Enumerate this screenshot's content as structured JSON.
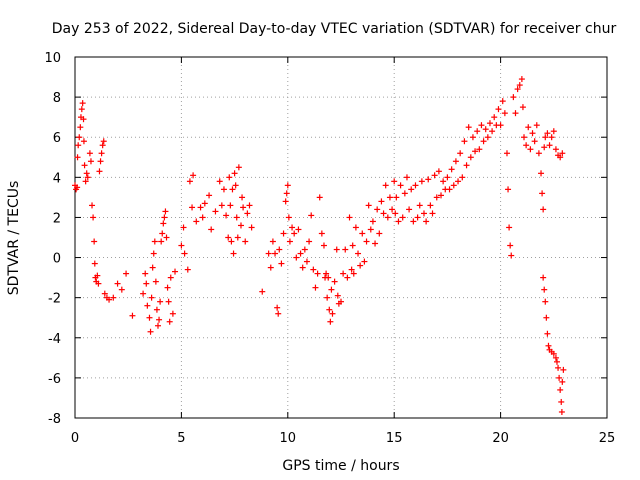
{
  "chart_data": {
    "type": "scatter",
    "title": "Day 253 of 2022, Sidereal Day-to-day VTEC variation (SDTVAR) for receiver chur",
    "xlabel": "GPS time / hours",
    "ylabel": "SDTVAR / TECUs",
    "xlim": [
      0,
      25
    ],
    "ylim": [
      -8,
      10
    ],
    "xticks": [
      "0",
      "5",
      "10",
      "15",
      "20",
      "25"
    ],
    "yticks": [
      "-8",
      "-6",
      "-4",
      "-2",
      "0",
      "2",
      "4",
      "6",
      "8",
      "10"
    ],
    "grid": true,
    "marker": "+",
    "color": "#ff0000",
    "series": [
      {
        "name": "SDTVAR",
        "points": [
          [
            0.0,
            3.6
          ],
          [
            0.05,
            3.4
          ],
          [
            0.1,
            3.5
          ],
          [
            0.12,
            5.0
          ],
          [
            0.15,
            5.6
          ],
          [
            0.2,
            6.0
          ],
          [
            0.25,
            6.5
          ],
          [
            0.28,
            7.0
          ],
          [
            0.32,
            7.4
          ],
          [
            0.36,
            7.7
          ],
          [
            0.4,
            6.9
          ],
          [
            0.42,
            5.8
          ],
          [
            0.45,
            4.6
          ],
          [
            0.5,
            3.8
          ],
          [
            0.55,
            4.2
          ],
          [
            0.6,
            4.0
          ],
          [
            0.7,
            5.2
          ],
          [
            0.75,
            4.8
          ],
          [
            0.8,
            2.6
          ],
          [
            0.85,
            2.0
          ],
          [
            0.9,
            0.8
          ],
          [
            0.93,
            -0.3
          ],
          [
            0.96,
            -1.0
          ],
          [
            1.0,
            -1.2
          ],
          [
            1.05,
            -0.9
          ],
          [
            1.1,
            -1.3
          ],
          [
            1.15,
            4.3
          ],
          [
            1.2,
            4.8
          ],
          [
            1.25,
            5.2
          ],
          [
            1.3,
            5.6
          ],
          [
            1.35,
            5.8
          ],
          [
            1.4,
            -1.8
          ],
          [
            1.5,
            -2.0
          ],
          [
            1.6,
            -2.1
          ],
          [
            1.8,
            -2.0
          ],
          [
            2.0,
            -1.3
          ],
          [
            2.2,
            -1.6
          ],
          [
            2.4,
            -0.8
          ],
          [
            2.7,
            -2.9
          ],
          [
            3.2,
            -1.8
          ],
          [
            3.3,
            -0.8
          ],
          [
            3.35,
            -1.3
          ],
          [
            3.4,
            -2.4
          ],
          [
            3.5,
            -3.0
          ],
          [
            3.55,
            -3.7
          ],
          [
            3.6,
            -2.0
          ],
          [
            3.65,
            -0.5
          ],
          [
            3.7,
            0.2
          ],
          [
            3.75,
            0.8
          ],
          [
            3.8,
            -1.2
          ],
          [
            3.85,
            -2.6
          ],
          [
            3.9,
            -3.4
          ],
          [
            3.95,
            -3.1
          ],
          [
            4.0,
            -2.2
          ],
          [
            4.05,
            0.8
          ],
          [
            4.1,
            1.2
          ],
          [
            4.15,
            1.7
          ],
          [
            4.2,
            2.0
          ],
          [
            4.25,
            2.3
          ],
          [
            4.3,
            1.0
          ],
          [
            4.35,
            -1.5
          ],
          [
            4.4,
            -2.2
          ],
          [
            4.45,
            -3.2
          ],
          [
            4.5,
            -1.0
          ],
          [
            4.6,
            -2.8
          ],
          [
            4.7,
            -0.7
          ],
          [
            5.0,
            0.6
          ],
          [
            5.1,
            1.5
          ],
          [
            5.15,
            0.2
          ],
          [
            5.3,
            -0.6
          ],
          [
            5.4,
            3.8
          ],
          [
            5.5,
            2.5
          ],
          [
            5.55,
            4.1
          ],
          [
            5.7,
            1.8
          ],
          [
            5.9,
            2.5
          ],
          [
            6.0,
            2.0
          ],
          [
            6.1,
            2.7
          ],
          [
            6.3,
            3.1
          ],
          [
            6.4,
            1.4
          ],
          [
            6.6,
            2.3
          ],
          [
            6.8,
            3.8
          ],
          [
            6.9,
            2.6
          ],
          [
            7.0,
            3.4
          ],
          [
            7.1,
            2.1
          ],
          [
            7.2,
            1.0
          ],
          [
            7.25,
            4.0
          ],
          [
            7.3,
            2.6
          ],
          [
            7.35,
            0.8
          ],
          [
            7.4,
            3.4
          ],
          [
            7.45,
            0.2
          ],
          [
            7.5,
            4.2
          ],
          [
            7.55,
            3.6
          ],
          [
            7.6,
            2.0
          ],
          [
            7.65,
            1.0
          ],
          [
            7.7,
            4.5
          ],
          [
            7.8,
            1.6
          ],
          [
            7.85,
            3.0
          ],
          [
            7.9,
            2.5
          ],
          [
            8.0,
            0.8
          ],
          [
            8.1,
            2.2
          ],
          [
            8.2,
            2.6
          ],
          [
            8.3,
            1.5
          ],
          [
            8.8,
            -1.7
          ],
          [
            9.1,
            0.2
          ],
          [
            9.2,
            -0.5
          ],
          [
            9.3,
            0.8
          ],
          [
            9.4,
            0.2
          ],
          [
            9.5,
            -2.5
          ],
          [
            9.55,
            -2.8
          ],
          [
            9.6,
            0.4
          ],
          [
            9.7,
            -0.3
          ],
          [
            9.8,
            1.2
          ],
          [
            9.9,
            2.8
          ],
          [
            9.95,
            3.2
          ],
          [
            10.0,
            3.6
          ],
          [
            10.05,
            2.0
          ],
          [
            10.1,
            0.8
          ],
          [
            10.2,
            1.5
          ],
          [
            10.3,
            1.2
          ],
          [
            10.4,
            0.0
          ],
          [
            10.5,
            1.4
          ],
          [
            10.6,
            0.2
          ],
          [
            10.7,
            -0.5
          ],
          [
            10.8,
            0.4
          ],
          [
            10.9,
            -0.2
          ],
          [
            11.0,
            0.8
          ],
          [
            11.1,
            2.1
          ],
          [
            11.2,
            -0.6
          ],
          [
            11.3,
            -1.5
          ],
          [
            11.4,
            -0.8
          ],
          [
            11.5,
            3.0
          ],
          [
            11.6,
            1.2
          ],
          [
            11.7,
            0.6
          ],
          [
            11.75,
            -1.0
          ],
          [
            11.8,
            -0.8
          ],
          [
            11.85,
            -2.0
          ],
          [
            11.9,
            -1.0
          ],
          [
            11.95,
            -2.6
          ],
          [
            12.0,
            -3.2
          ],
          [
            12.05,
            -1.6
          ],
          [
            12.1,
            -2.8
          ],
          [
            12.2,
            -1.2
          ],
          [
            12.3,
            0.4
          ],
          [
            12.35,
            -1.9
          ],
          [
            12.4,
            -2.3
          ],
          [
            12.5,
            -2.2
          ],
          [
            12.6,
            -0.8
          ],
          [
            12.7,
            0.4
          ],
          [
            12.8,
            -1.0
          ],
          [
            12.9,
            2.0
          ],
          [
            13.0,
            -0.6
          ],
          [
            13.05,
            0.6
          ],
          [
            13.1,
            -0.8
          ],
          [
            13.2,
            1.5
          ],
          [
            13.3,
            0.2
          ],
          [
            13.4,
            -0.4
          ],
          [
            13.5,
            1.2
          ],
          [
            13.6,
            -0.2
          ],
          [
            13.7,
            0.8
          ],
          [
            13.8,
            2.6
          ],
          [
            13.9,
            1.4
          ],
          [
            14.0,
            1.8
          ],
          [
            14.1,
            0.7
          ],
          [
            14.2,
            2.4
          ],
          [
            14.3,
            1.2
          ],
          [
            14.4,
            2.8
          ],
          [
            14.5,
            2.2
          ],
          [
            14.6,
            3.6
          ],
          [
            14.7,
            2.0
          ],
          [
            14.8,
            3.0
          ],
          [
            14.9,
            2.4
          ],
          [
            15.0,
            3.8
          ],
          [
            15.05,
            2.2
          ],
          [
            15.1,
            3.0
          ],
          [
            15.2,
            1.8
          ],
          [
            15.3,
            3.6
          ],
          [
            15.4,
            2.0
          ],
          [
            15.5,
            3.2
          ],
          [
            15.6,
            4.0
          ],
          [
            15.7,
            2.4
          ],
          [
            15.8,
            3.4
          ],
          [
            15.9,
            1.8
          ],
          [
            16.0,
            3.6
          ],
          [
            16.1,
            2.0
          ],
          [
            16.2,
            2.6
          ],
          [
            16.3,
            3.8
          ],
          [
            16.4,
            2.2
          ],
          [
            16.5,
            1.8
          ],
          [
            16.6,
            3.9
          ],
          [
            16.7,
            2.6
          ],
          [
            16.8,
            2.2
          ],
          [
            16.9,
            4.1
          ],
          [
            17.0,
            3.0
          ],
          [
            17.1,
            4.3
          ],
          [
            17.2,
            3.1
          ],
          [
            17.3,
            3.8
          ],
          [
            17.4,
            3.4
          ],
          [
            17.5,
            4.0
          ],
          [
            17.6,
            3.4
          ],
          [
            17.7,
            4.4
          ],
          [
            17.8,
            3.6
          ],
          [
            17.9,
            4.8
          ],
          [
            18.0,
            3.8
          ],
          [
            18.1,
            5.2
          ],
          [
            18.2,
            4.0
          ],
          [
            18.3,
            5.8
          ],
          [
            18.4,
            4.6
          ],
          [
            18.5,
            6.5
          ],
          [
            18.6,
            5.0
          ],
          [
            18.7,
            6.0
          ],
          [
            18.8,
            5.3
          ],
          [
            18.9,
            6.3
          ],
          [
            19.0,
            5.4
          ],
          [
            19.1,
            6.6
          ],
          [
            19.2,
            5.8
          ],
          [
            19.3,
            6.4
          ],
          [
            19.4,
            6.0
          ],
          [
            19.5,
            6.7
          ],
          [
            19.6,
            6.3
          ],
          [
            19.7,
            7.0
          ],
          [
            19.8,
            6.6
          ],
          [
            19.9,
            7.4
          ],
          [
            20.0,
            6.6
          ],
          [
            20.1,
            7.8
          ],
          [
            20.2,
            7.2
          ],
          [
            20.3,
            5.2
          ],
          [
            20.35,
            3.4
          ],
          [
            20.4,
            1.5
          ],
          [
            20.45,
            0.6
          ],
          [
            20.5,
            0.1
          ],
          [
            20.6,
            8.0
          ],
          [
            20.7,
            7.2
          ],
          [
            20.8,
            8.4
          ],
          [
            20.9,
            8.6
          ],
          [
            21.0,
            8.9
          ],
          [
            21.05,
            7.5
          ],
          [
            21.1,
            6.0
          ],
          [
            21.2,
            5.6
          ],
          [
            21.3,
            6.5
          ],
          [
            21.4,
            5.4
          ],
          [
            21.5,
            6.2
          ],
          [
            21.6,
            5.8
          ],
          [
            21.7,
            6.6
          ],
          [
            21.8,
            5.2
          ],
          [
            21.9,
            4.2
          ],
          [
            21.95,
            3.2
          ],
          [
            22.0,
            2.4
          ],
          [
            22.05,
            5.5
          ],
          [
            22.1,
            6.0
          ],
          [
            22.2,
            6.2
          ],
          [
            22.3,
            5.6
          ],
          [
            22.4,
            6.0
          ],
          [
            22.5,
            6.3
          ],
          [
            22.6,
            5.4
          ],
          [
            22.7,
            5.1
          ],
          [
            22.8,
            5.0
          ],
          [
            22.9,
            5.2
          ],
          [
            22.0,
            -1.0
          ],
          [
            22.05,
            -1.6
          ],
          [
            22.1,
            -2.2
          ],
          [
            22.15,
            -3.0
          ],
          [
            22.2,
            -3.8
          ],
          [
            22.25,
            -4.4
          ],
          [
            22.3,
            -4.6
          ],
          [
            22.4,
            -4.7
          ],
          [
            22.5,
            -4.8
          ],
          [
            22.6,
            -5.0
          ],
          [
            22.65,
            -5.2
          ],
          [
            22.7,
            -5.5
          ],
          [
            22.75,
            -6.0
          ],
          [
            22.8,
            -6.6
          ],
          [
            22.85,
            -7.2
          ],
          [
            22.88,
            -7.7
          ],
          [
            22.9,
            -6.2
          ],
          [
            22.95,
            -5.6
          ]
        ]
      }
    ]
  }
}
